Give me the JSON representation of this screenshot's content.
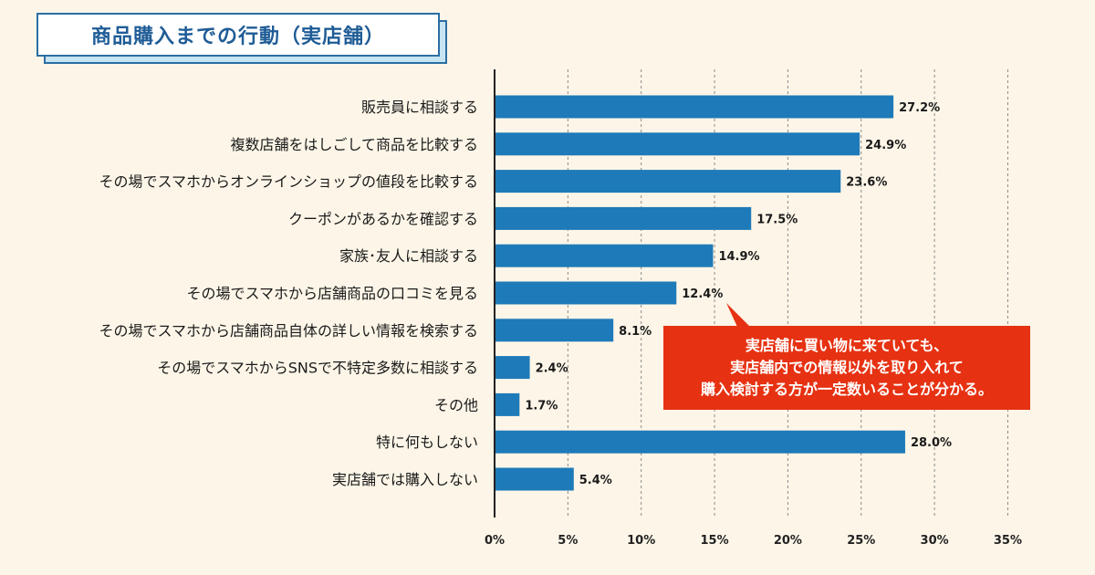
{
  "title": "商品購入までの行動（実店舗）",
  "callout": {
    "lines": [
      "実店舗に買い物に来ていても、",
      "実店舗内での情報以外を取り入れて",
      "購入検討する方が一定数いることが分かる。"
    ]
  },
  "colors": {
    "background": "#fdf6e8",
    "bar": "#1e7ab8",
    "callout": "#e63212",
    "title_text": "#1f5c96"
  },
  "chart_data": {
    "type": "bar",
    "orientation": "horizontal",
    "categories": [
      "販売員に相談する",
      "複数店舗をはしごして商品を比較する",
      "その場でスマホからオンラインショップの値段を比較する",
      "クーポンがあるかを確認する",
      "家族･友人に相談する",
      "その場でスマホから店舗商品の口コミを見る",
      "その場でスマホから店舗商品自体の詳しい情報を検索する",
      "その場でスマホからSNSで不特定多数に相談する",
      "その他",
      "特に何もしない",
      "実店舗では購入しない"
    ],
    "values": [
      27.2,
      24.9,
      23.6,
      17.5,
      14.9,
      12.4,
      8.1,
      2.4,
      1.7,
      28.0,
      5.4
    ],
    "value_labels": [
      "27.2%",
      "24.9%",
      "23.6%",
      "17.5%",
      "14.9%",
      "12.4%",
      "8.1%",
      "2.4%",
      "1.7%",
      "28.0%",
      "5.4%"
    ],
    "xticks": [
      "0%",
      "5%",
      "10%",
      "15%",
      "20%",
      "25%",
      "30%",
      "35%"
    ],
    "xlim": [
      0,
      35
    ],
    "grid": "vertical dashed"
  }
}
